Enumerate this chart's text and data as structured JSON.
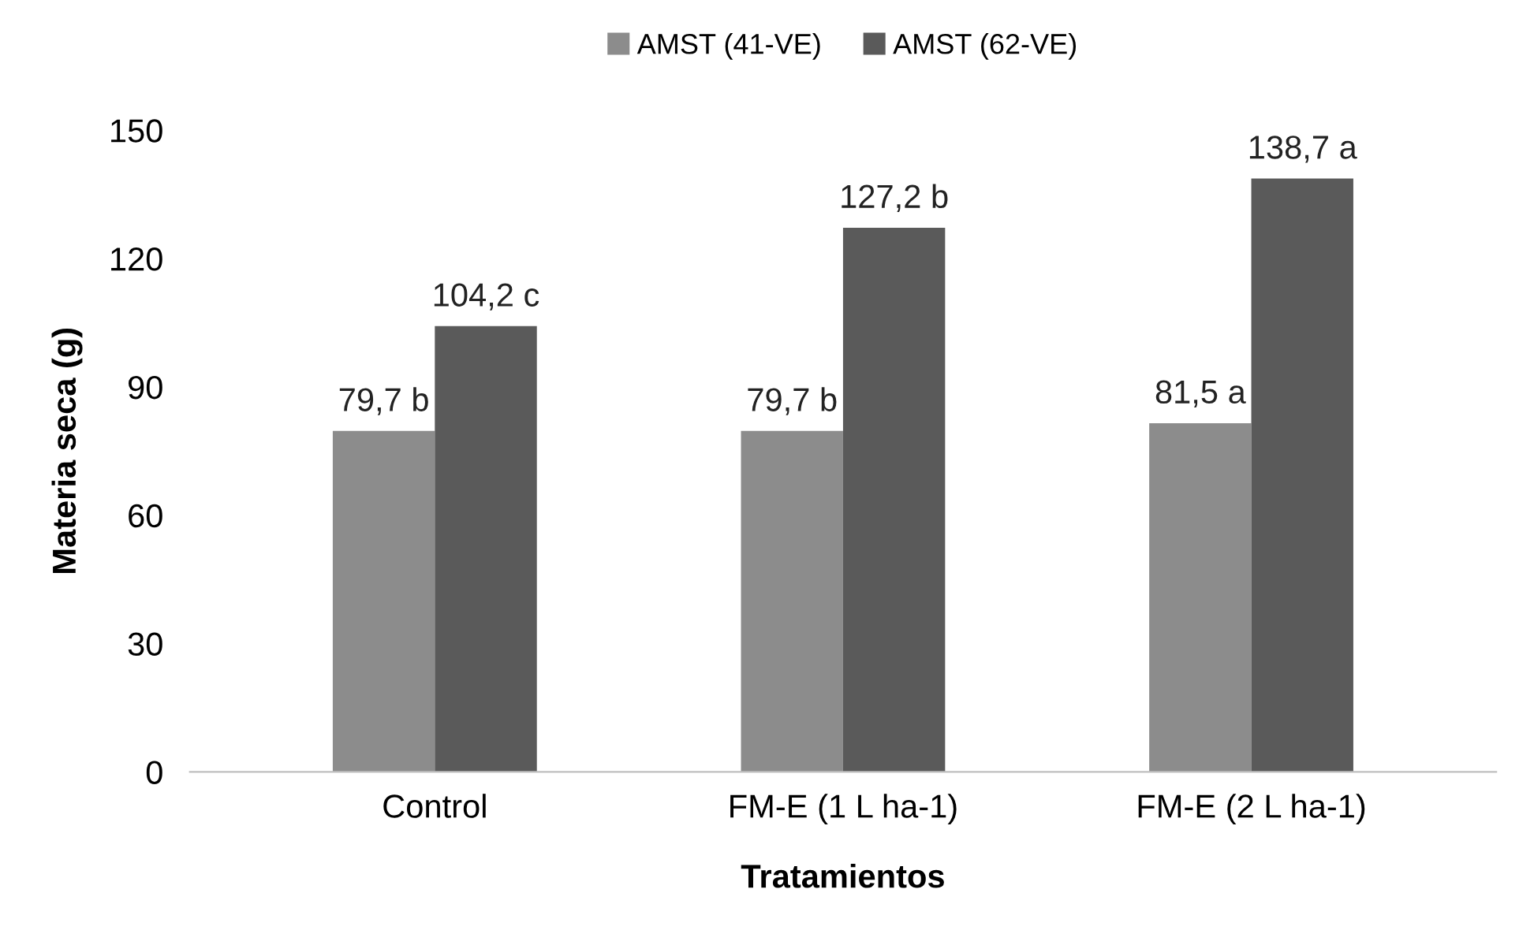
{
  "chart_data": {
    "type": "bar",
    "xlabel": "Tratamientos",
    "ylabel": "Materia seca (g)",
    "categories": [
      "Control",
      "FM-E (1 L ha-1)",
      "FM-E (2 L ha-1)"
    ],
    "series": [
      {
        "name": "AMST (41-VE)",
        "color": "#8c8c8c",
        "values": [
          79.7,
          79.7,
          81.5
        ],
        "value_labels": [
          "79,7 b",
          "79,7 b",
          "81,5 a"
        ]
      },
      {
        "name": "AMST (62-VE)",
        "color": "#5a5a5a",
        "values": [
          104.2,
          127.2,
          138.7
        ],
        "value_labels": [
          "104,2 c",
          "127,2 b",
          "138,7 a"
        ]
      }
    ],
    "ylim": [
      0,
      150
    ],
    "yticks": [
      0,
      30,
      60,
      90,
      120,
      150
    ],
    "grid": false,
    "legend": "top"
  }
}
